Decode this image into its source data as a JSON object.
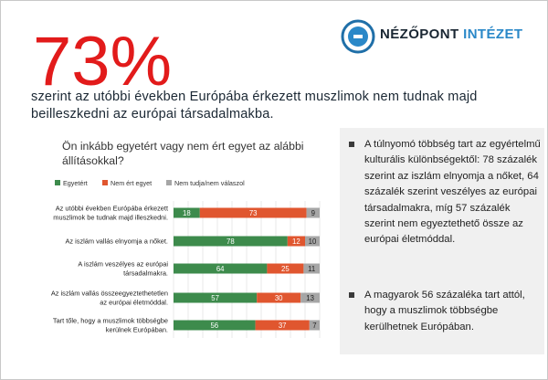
{
  "big_stat": "73%",
  "logo": {
    "word1": "NÉZŐPONT",
    "word2": "INTÉZET",
    "icon": "nezopont-logo-icon",
    "ring_color": "#1f6fa8",
    "inner_color": "#2a88c8"
  },
  "headline": "szerint az utóbbi években Európába érkezett muszlimok nem tudnak majd beilleszkedni az európai társadalmakba.",
  "question": "Ön inkább egyetért vagy nem ért egyet az alábbi állításokkal?",
  "colors": {
    "agree": "#3d8b4c",
    "disagree": "#e0562f",
    "unknown": "#a6a6a6",
    "accent_red": "#e21b1b"
  },
  "bullets": [
    "A túlnyomó többség tart az egyértelmű kulturális különbségektől: 78 százalék szerint az iszlám elnyomja a nőket, 64 százalék szerint veszélyes az európai társadalmakra, míg 57 százalék szerint nem egyeztethető össze az európai életmóddal.",
    "A magyarok 56 százaléka tart attól, hogy a muszlimok többségbe kerülhetnek Európában."
  ],
  "chart_data": {
    "type": "bar",
    "stacked": true,
    "orientation": "horizontal",
    "title": "Ön inkább egyetért vagy nem ért egyet az alábbi állításokkal?",
    "legend_position": "top",
    "categories": [
      [
        "Az utóbbi években Európába érkezett",
        "muszlimok be tudnak majd illeszkedni."
      ],
      [
        "Az iszlám vallás elnyomja a nőket."
      ],
      [
        "A iszlám veszélyes az európai",
        "társadalmakra."
      ],
      [
        "Az iszlám vallás összeegyeztethetetlen",
        "az európai életmóddal."
      ],
      [
        "Tart tőle, hogy a muszlimok többségbe",
        "kerülnek Európában."
      ]
    ],
    "series": [
      {
        "name": "Egyetért",
        "color": "#3d8b4c",
        "values": [
          18,
          78,
          64,
          57,
          56
        ]
      },
      {
        "name": "Nem ért egyet",
        "color": "#e0562f",
        "values": [
          73,
          12,
          25,
          30,
          37
        ]
      },
      {
        "name": "Nem tudja/nem válaszol",
        "color": "#a6a6a6",
        "values": [
          9,
          10,
          11,
          13,
          7
        ]
      }
    ],
    "xlim": [
      0,
      100
    ],
    "x_ticks": [
      0,
      10,
      20,
      30,
      40,
      50,
      60,
      70,
      80,
      90,
      100
    ],
    "grid": true
  }
}
